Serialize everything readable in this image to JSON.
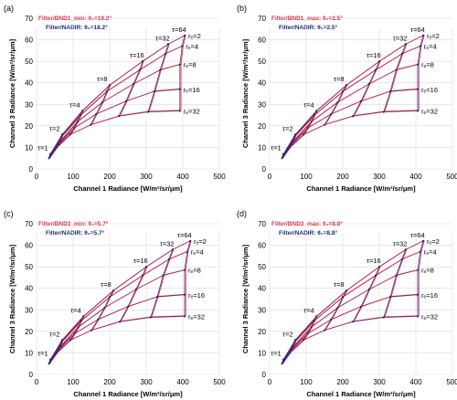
{
  "colors": {
    "red": "#d81b3c",
    "blue": "#1f2a7a",
    "grid": "#d9d9d9",
    "axis": "#555555",
    "text": "#000000",
    "marker": "#1f2a7a"
  },
  "chart_data": [
    {
      "type": "line",
      "panel": "(a)",
      "legend": [
        "Filter/BND1_min: θ₀=18.2°",
        "Filter/NADIR: θ₀=18.2°"
      ],
      "xlabel": "Channel 1 Radiance [W/m²/sr/μm]",
      "ylabel": "Channel 3 Radiance [W/m²/sr/μm]",
      "xlim": [
        0,
        500
      ],
      "ylim": [
        0,
        70
      ],
      "xticks": [
        "0",
        "100",
        "200",
        "300",
        "400",
        "500"
      ],
      "yticks": [
        "0",
        "10",
        "20",
        "30",
        "40",
        "50",
        "60",
        "70"
      ],
      "grid": true,
      "tau_values": [
        "τ=1",
        "τ=2",
        "τ=4",
        "τ=8",
        "τ=16",
        "τ=32",
        "τ=64"
      ],
      "re_values": [
        "rₑ=2",
        "rₑ=4",
        "rₑ=8",
        "rₑ=16",
        "rₑ=32"
      ],
      "grid_x": [
        [
          38,
          38,
          37,
          36,
          34
        ],
        [
          70,
          68,
          65,
          60,
          55
        ],
        [
          125,
          120,
          112,
          103,
          92
        ],
        [
          200,
          192,
          180,
          163,
          148
        ],
        [
          290,
          282,
          265,
          245,
          225
        ],
        [
          360,
          352,
          338,
          322,
          305
        ],
        [
          405,
          398,
          392,
          392,
          392
        ]
      ],
      "grid_y": [
        [
          7,
          6.5,
          6,
          5.5,
          5
        ],
        [
          16,
          15,
          13,
          11.5,
          10
        ],
        [
          27,
          25,
          22,
          19,
          16
        ],
        [
          39,
          36,
          31,
          25.5,
          20.5
        ],
        [
          50,
          46,
          39.5,
          31.5,
          24.5
        ],
        [
          58,
          53.5,
          46,
          36,
          26.5
        ],
        [
          62,
          57,
          48.5,
          37,
          27
        ]
      ]
    },
    {
      "type": "line",
      "panel": "(b)",
      "legend": [
        "Filter/BND1_max: θ₀=2.5°",
        "Filter/NADIR: θ₀=2.5°"
      ],
      "xlabel": "Channel 1 Radiance [W/m²/sr/μm]",
      "ylabel": "Channel 3 Radiance [W/m²/sr/μm]",
      "xlim": [
        0,
        500
      ],
      "ylim": [
        0,
        70
      ],
      "xticks": [
        "0",
        "100",
        "200",
        "300",
        "400",
        "500"
      ],
      "yticks": [
        "0",
        "10",
        "20",
        "30",
        "40",
        "50",
        "60",
        "70"
      ],
      "grid": true,
      "tau_values": [
        "τ=1",
        "τ=2",
        "τ=4",
        "τ=8",
        "τ=16",
        "τ=32",
        "τ=64"
      ],
      "re_values": [
        "rₑ=2",
        "rₑ=4",
        "rₑ=8",
        "rₑ=16",
        "rₑ=32"
      ],
      "grid_x": [
        [
          38,
          38,
          37,
          36,
          34
        ],
        [
          70,
          68,
          65,
          60,
          55
        ],
        [
          128,
          122,
          114,
          104,
          93
        ],
        [
          210,
          200,
          186,
          168,
          150
        ],
        [
          300,
          290,
          272,
          250,
          228
        ],
        [
          372,
          362,
          346,
          330,
          312
        ],
        [
          420,
          412,
          405,
          405,
          405
        ]
      ],
      "grid_y": [
        [
          7,
          6.5,
          6,
          5.5,
          5
        ],
        [
          16,
          15,
          13,
          11.5,
          10
        ],
        [
          27,
          25,
          22,
          19,
          16
        ],
        [
          39,
          36,
          31,
          25.5,
          20.5
        ],
        [
          50,
          46,
          39.5,
          31.5,
          24.5
        ],
        [
          58,
          53.5,
          46,
          36,
          26.5
        ],
        [
          62,
          57,
          48.5,
          37,
          27
        ]
      ]
    },
    {
      "type": "line",
      "panel": "(c)",
      "legend": [
        "Filter/BND3_min: θ₀=5.7°",
        "Filter/NADIR: θ₀=5.7°"
      ],
      "xlabel": "Channel 1 Radiance [W/m²/sr/μm]",
      "ylabel": "Channel 3 Radiance [W/m²/sr/μm]",
      "xlim": [
        0,
        500
      ],
      "ylim": [
        0,
        70
      ],
      "xticks": [
        "0",
        "100",
        "200",
        "300",
        "400",
        "500"
      ],
      "yticks": [
        "0",
        "10",
        "20",
        "30",
        "40",
        "50",
        "60",
        "70"
      ],
      "grid": true,
      "tau_values": [
        "τ=1",
        "τ=2",
        "τ=4",
        "τ=8",
        "τ=16",
        "τ=32",
        "τ=64"
      ],
      "re_values": [
        "rₑ=2",
        "rₑ=4",
        "rₑ=8",
        "rₑ=16",
        "rₑ=32"
      ],
      "grid_x": [
        [
          38,
          38,
          37,
          36,
          34
        ],
        [
          70,
          68,
          65,
          60,
          55
        ],
        [
          128,
          122,
          114,
          104,
          93
        ],
        [
          210,
          200,
          186,
          168,
          150
        ],
        [
          300,
          290,
          272,
          250,
          228
        ],
        [
          372,
          362,
          346,
          330,
          312
        ],
        [
          420,
          412,
          405,
          405,
          405
        ]
      ],
      "grid_y": [
        [
          7,
          6.5,
          6,
          5.5,
          5
        ],
        [
          16,
          15,
          13,
          11.5,
          10
        ],
        [
          27,
          25,
          22,
          19,
          16
        ],
        [
          39,
          36,
          31,
          25.5,
          20.5
        ],
        [
          50,
          46,
          39.5,
          31.5,
          24.5
        ],
        [
          58,
          53.5,
          46,
          36,
          26.5
        ],
        [
          62,
          57,
          48.5,
          37,
          27
        ]
      ]
    },
    {
      "type": "line",
      "panel": "(d)",
      "legend": [
        "Filter/BND3_max: θ₀=8.8°",
        "Filter/NADIR: θ₀=8.8°"
      ],
      "xlabel": "Channel 1 Radiance [W/m²/sr/μm]",
      "ylabel": "Channel 3 Radiance [W/m²/sr/μm]",
      "xlim": [
        0,
        500
      ],
      "ylim": [
        0,
        70
      ],
      "xticks": [
        "0",
        "100",
        "200",
        "300",
        "400",
        "500"
      ],
      "yticks": [
        "0",
        "10",
        "20",
        "30",
        "40",
        "50",
        "60",
        "70"
      ],
      "grid": true,
      "tau_values": [
        "τ=1",
        "τ=2",
        "τ=4",
        "τ=8",
        "τ=16",
        "τ=32",
        "τ=64"
      ],
      "re_values": [
        "rₑ=2",
        "rₑ=4",
        "rₑ=8",
        "rₑ=16",
        "rₑ=32"
      ],
      "grid_x": [
        [
          38,
          38,
          37,
          36,
          34
        ],
        [
          70,
          68,
          65,
          60,
          55
        ],
        [
          128,
          122,
          114,
          104,
          93
        ],
        [
          210,
          200,
          186,
          168,
          150
        ],
        [
          300,
          290,
          272,
          250,
          228
        ],
        [
          372,
          362,
          346,
          330,
          312
        ],
        [
          420,
          412,
          405,
          405,
          405
        ]
      ],
      "grid_y": [
        [
          7,
          6.5,
          6,
          5.5,
          5
        ],
        [
          16,
          15,
          13,
          11.5,
          10
        ],
        [
          27,
          25,
          22,
          19,
          16
        ],
        [
          39,
          36,
          31,
          25.5,
          20.5
        ],
        [
          50,
          46,
          39.5,
          31.5,
          24.5
        ],
        [
          58,
          53.5,
          46,
          36,
          26.5
        ],
        [
          62,
          57,
          48.5,
          37,
          27
        ]
      ]
    }
  ]
}
